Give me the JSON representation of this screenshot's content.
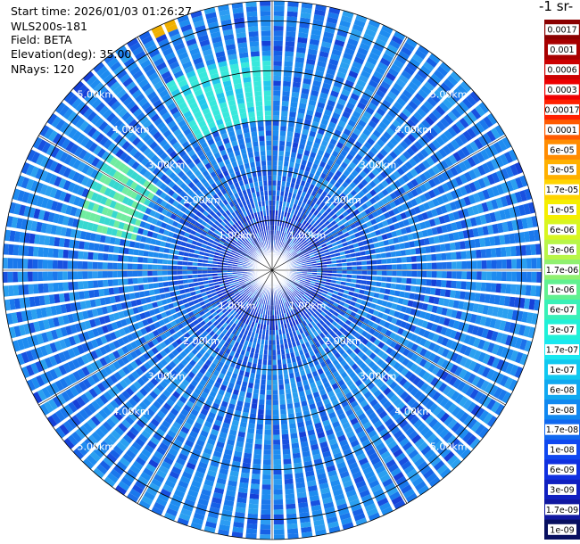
{
  "info": {
    "start_time": "Start time: 2026/01/03 01:26:27",
    "instrument": "WLS200s-181",
    "field": "Field: BETA",
    "elevation": "Elevation(deg): 35.00",
    "nrays": "NRays: 120"
  },
  "colorbar": {
    "unit_label": "-1 sr-",
    "labels": [
      "0.0017",
      "0.001",
      "0.0006",
      "0.0003",
      "0.00017",
      "0.0001",
      "6e-05",
      "3e-05",
      "1.7e-05",
      "1e-05",
      "6e-06",
      "3e-06",
      "1.7e-06",
      "1e-06",
      "6e-07",
      "3e-07",
      "1.7e-07",
      "1e-07",
      "6e-08",
      "3e-08",
      "1.7e-08",
      "1e-08",
      "6e-09",
      "3e-09",
      "1.7e-09",
      "1e-09"
    ],
    "colors": [
      "#8b0000",
      "#a80000",
      "#cc0000",
      "#ee0000",
      "#ff2000",
      "#ff5a00",
      "#ff8c00",
      "#ffb000",
      "#ffd400",
      "#f5ee00",
      "#d8f520",
      "#b8f548",
      "#90f070",
      "#60f090",
      "#38f0b8",
      "#20f0d8",
      "#18e8f0",
      "#10c8f0",
      "#10a8f0",
      "#1088f0",
      "#1068f0",
      "#1048f0",
      "#1030e0",
      "#1020c0",
      "#1018a0",
      "#081060"
    ],
    "dark_text_from": 2,
    "dark_text_to": 20
  },
  "chart_data": {
    "type": "heatmap",
    "projection": "polar PPI (plan position indicator)",
    "field": "BETA",
    "n_rays": 120,
    "elevation_deg": 35.0,
    "range_rings_km": [
      1,
      2,
      3,
      4,
      5
    ],
    "ring_labels": [
      "1.00km",
      "2.00km",
      "3.00km",
      "4.00km",
      "5.00km"
    ],
    "max_range_km": 5.4,
    "color_scale": "log",
    "vmin": 1e-09,
    "vmax": 0.0017,
    "background_level": "≈1e-08 to 3e-08",
    "features": [
      {
        "azimuth_deg": 345,
        "range_km": [
          3.0,
          4.3
        ],
        "level": "≈1.7e-07",
        "color": "cyan"
      },
      {
        "azimuth_deg": 295,
        "range_km": [
          2.8,
          4.0
        ],
        "level": "≈1e-06",
        "color": "light green"
      },
      {
        "azimuth_deg": 335,
        "range_km": [
          5.2,
          5.4
        ],
        "level": "≈3e-05",
        "color": "orange"
      }
    ]
  }
}
